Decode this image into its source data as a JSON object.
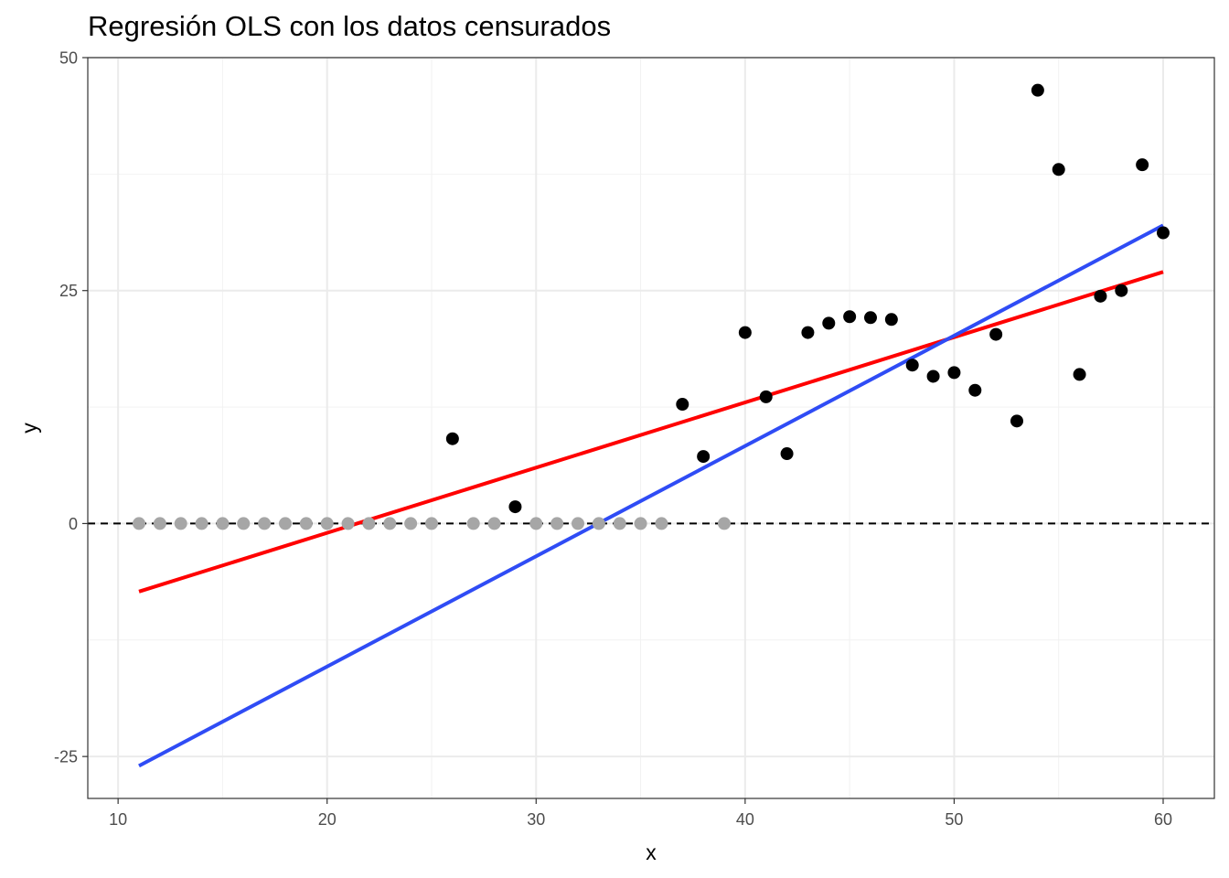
{
  "chart_data": {
    "type": "scatter",
    "title": "Regresión OLS con los datos censurados",
    "xlabel": "x",
    "ylabel": "y",
    "xlim": [
      8.55,
      62.45
    ],
    "ylim": [
      -29.5,
      50
    ],
    "x_ticks": [
      10,
      20,
      30,
      40,
      50,
      60
    ],
    "x_tick_labels": [
      "10",
      "20",
      "30",
      "40",
      "50",
      "60"
    ],
    "y_ticks": [
      -25,
      0,
      25,
      50
    ],
    "y_tick_labels": [
      "-25",
      "0",
      "25",
      "50"
    ],
    "grid": true,
    "legend": "none",
    "colors": {
      "censored_points": "#a6a6a6",
      "observed_points": "#000000",
      "ols_censored_line": "#ff0000",
      "ols_observed_line": "#2f4cf5",
      "zero_line": "#000000",
      "grid_major": "#ebebeb",
      "grid_minor": "#f2f2f2",
      "panel_border": "#333333"
    },
    "censored_points": {
      "x": [
        11,
        12,
        13,
        14,
        15,
        16,
        17,
        18,
        19,
        20,
        21,
        22,
        23,
        24,
        25,
        27,
        28,
        30,
        31,
        32,
        33,
        34,
        35,
        36,
        39
      ],
      "y": [
        0,
        0,
        0,
        0,
        0,
        0,
        0,
        0,
        0,
        0,
        0,
        0,
        0,
        0,
        0,
        0,
        0,
        0,
        0,
        0,
        0,
        0,
        0,
        0,
        0
      ]
    },
    "observed_points": {
      "x": [
        26,
        29,
        37,
        38,
        40,
        41,
        42,
        43,
        44,
        45,
        46,
        47,
        48,
        49,
        50,
        51,
        52,
        53,
        54,
        55,
        56,
        57,
        58,
        59,
        60
      ],
      "y": [
        9.1,
        1.8,
        12.8,
        7.2,
        20.5,
        13.6,
        7.5,
        20.5,
        21.5,
        22.2,
        22.1,
        21.9,
        17.0,
        15.8,
        16.2,
        14.3,
        20.3,
        11.0,
        46.5,
        38.0,
        16.0,
        24.4,
        25.0,
        38.5,
        31.2
      ]
    },
    "series": [
      {
        "x": [
          11,
          60
        ],
        "y": [
          -7.3,
          27.0
        ]
      },
      {
        "x": [
          11,
          60
        ],
        "y": [
          -26.0,
          32.0
        ]
      }
    ],
    "reference_line": {
      "y": 0,
      "style": "dashed"
    }
  }
}
